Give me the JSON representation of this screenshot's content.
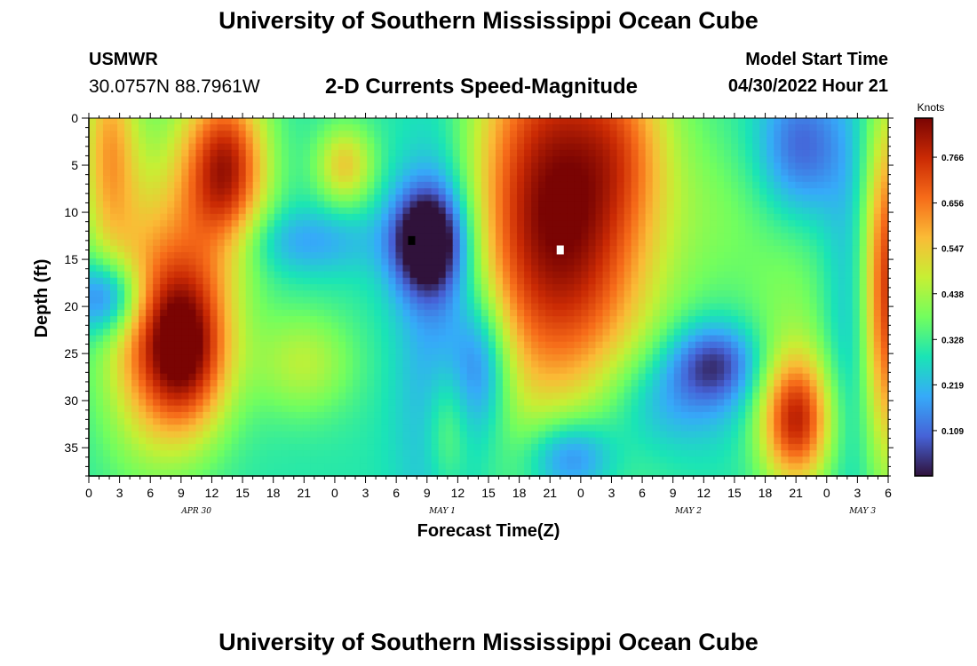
{
  "header": {
    "main_title": "University of Southern Mississippi Ocean Cube",
    "station": "USMWR",
    "coordinates": "30.0757N  88.7961W",
    "plot_title": "2-D Currents Speed-Magnitude",
    "model_start_label": "Model Start Time",
    "model_start_value": "04/30/2022 Hour 21",
    "bottom_title": "University of Southern Mississippi Ocean Cube"
  },
  "chart_data": {
    "type": "heatmap",
    "title": "2-D Currents Speed-Magnitude",
    "xlabel": "Forecast Time(Z)",
    "ylabel": "Depth (ft)",
    "x_unit": "hours since Apr 30 00Z",
    "xlim": [
      0,
      78
    ],
    "ylim": [
      0,
      38
    ],
    "y_inverted": true,
    "x_ticks": [
      {
        "value": 0,
        "label": "0"
      },
      {
        "value": 3,
        "label": "3"
      },
      {
        "value": 6,
        "label": "6"
      },
      {
        "value": 9,
        "label": "9"
      },
      {
        "value": 12,
        "label": "12"
      },
      {
        "value": 15,
        "label": "15"
      },
      {
        "value": 18,
        "label": "18"
      },
      {
        "value": 21,
        "label": "21"
      },
      {
        "value": 24,
        "label": "0"
      },
      {
        "value": 27,
        "label": "3"
      },
      {
        "value": 30,
        "label": "6"
      },
      {
        "value": 33,
        "label": "9"
      },
      {
        "value": 36,
        "label": "12"
      },
      {
        "value": 39,
        "label": "15"
      },
      {
        "value": 42,
        "label": "18"
      },
      {
        "value": 45,
        "label": "21"
      },
      {
        "value": 48,
        "label": "0"
      },
      {
        "value": 51,
        "label": "3"
      },
      {
        "value": 54,
        "label": "6"
      },
      {
        "value": 57,
        "label": "9"
      },
      {
        "value": 60,
        "label": "12"
      },
      {
        "value": 63,
        "label": "15"
      },
      {
        "value": 66,
        "label": "18"
      },
      {
        "value": 69,
        "label": "21"
      },
      {
        "value": 72,
        "label": "0"
      },
      {
        "value": 75,
        "label": "3"
      },
      {
        "value": 78,
        "label": "6"
      }
    ],
    "date_labels": [
      {
        "value": 10.5,
        "label": "APR 30"
      },
      {
        "value": 34.5,
        "label": "MAY 1"
      },
      {
        "value": 58.5,
        "label": "MAY 2"
      },
      {
        "value": 75.5,
        "label": "MAY 3"
      }
    ],
    "y_ticks": [
      0,
      5,
      10,
      15,
      20,
      25,
      30,
      35
    ],
    "colorbar": {
      "unit": "Knots",
      "min": 0.0,
      "max": 0.86,
      "ticks": [
        0.109,
        0.219,
        0.328,
        0.438,
        0.547,
        0.656,
        0.766
      ],
      "colormap": [
        "#30123b",
        "#4662d7",
        "#36aaf9",
        "#1ae4b6",
        "#72fe5e",
        "#c7ef34",
        "#fabb36",
        "#f66b19",
        "#ca2a04",
        "#7a0403"
      ]
    },
    "blobs": [
      {
        "t": 2,
        "d": 3,
        "st": 2,
        "sd": 8,
        "a": 0.28
      },
      {
        "t": 5.5,
        "d": 22,
        "st": 3.5,
        "sd": 10,
        "a": 0.26
      },
      {
        "t": 9.5,
        "d": 25,
        "st": 3,
        "sd": 6,
        "a": 0.4
      },
      {
        "t": 13.5,
        "d": 5,
        "st": 2.8,
        "sd": 6,
        "a": 0.42
      },
      {
        "t": 10.5,
        "d": 14,
        "st": 3.8,
        "sd": 11,
        "a": 0.18
      },
      {
        "t": 2,
        "d": 19,
        "st": 2.5,
        "sd": 3,
        "a": -0.3
      },
      {
        "t": 21,
        "d": 26,
        "st": 3.5,
        "sd": 4,
        "a": 0.16
      },
      {
        "t": 21,
        "d": 13,
        "st": 5,
        "sd": 2.5,
        "a": -0.12
      },
      {
        "t": 25,
        "d": 5,
        "st": 2,
        "sd": 3,
        "a": 0.24
      },
      {
        "t": 33,
        "d": 13,
        "st": 2.5,
        "sd": 4,
        "a": -0.4
      },
      {
        "t": 34.5,
        "d": 20,
        "st": 3,
        "sd": 17,
        "a": -0.18
      },
      {
        "t": 35,
        "d": 33,
        "st": 1.5,
        "sd": 5,
        "a": 0.14
      },
      {
        "t": 38.5,
        "d": 26,
        "st": 2,
        "sd": 5,
        "a": -0.2
      },
      {
        "t": 46,
        "d": 10,
        "st": 6.5,
        "sd": 15,
        "a": 0.58
      },
      {
        "t": 47,
        "d": 36,
        "st": 3,
        "sd": 3,
        "a": -0.24
      },
      {
        "t": 52.5,
        "d": 3,
        "st": 3,
        "sd": 6,
        "a": 0.1
      },
      {
        "t": 56,
        "d": 30,
        "st": 5,
        "sd": 4,
        "a": -0.14
      },
      {
        "t": 61,
        "d": 26,
        "st": 3,
        "sd": 3,
        "a": -0.24
      },
      {
        "t": 69,
        "d": 32,
        "st": 2.5,
        "sd": 5,
        "a": 0.48
      },
      {
        "t": 68.5,
        "d": 19,
        "st": 3.5,
        "sd": 6,
        "a": 0.08
      },
      {
        "t": 69.5,
        "d": 3,
        "st": 3,
        "sd": 5,
        "a": -0.2
      },
      {
        "t": 62,
        "d": 10,
        "st": 4,
        "sd": 6,
        "a": 0.06
      },
      {
        "t": 78,
        "d": 18,
        "st": 1.8,
        "sd": 13,
        "a": 0.46
      },
      {
        "t": 74.5,
        "d": 20,
        "st": 2,
        "sd": 14,
        "a": -0.1
      }
    ],
    "background_speed": 0.3,
    "markers": [
      {
        "t": 31.5,
        "d": 13,
        "color": "#000000",
        "label": "minimum"
      },
      {
        "t": 46,
        "d": 14,
        "color": "#ffffff",
        "label": "maximum"
      }
    ]
  }
}
